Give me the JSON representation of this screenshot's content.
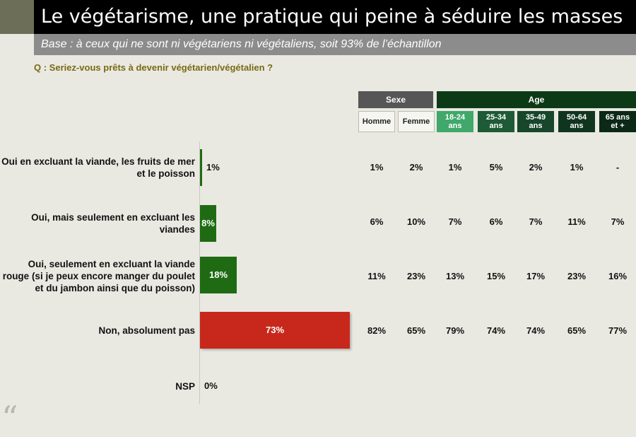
{
  "title": "Le végétarisme, une pratique qui peine à séduire les masses",
  "subtitle": "Base : à ceux qui ne sont ni végétariens ni végétaliens, soit 93% de l’échantillon",
  "question": "Q : Seriez-vous prêts à devenir végétarien/végétalien ?",
  "colors": {
    "bar_green": "#1f6b13",
    "bar_red": "#c8281c",
    "sexe_header": "#565656",
    "age_header": "#0d3a16",
    "age_18_24": "#3fa86a",
    "age_25_34": "#1e5a36",
    "age_35_49": "#17462a",
    "age_50_64": "#10351f",
    "age_65": "#0c2817"
  },
  "chart_data": {
    "type": "bar",
    "orientation": "horizontal",
    "categories": [
      "Oui en excluant la viande, les fruits de mer et le poisson",
      "Oui, mais seulement en excluant les viandes",
      "Oui, seulement en excluant la viande rouge (si je peux encore manger du poulet et du jambon ainsi que du poisson)",
      "Non, absolument pas",
      "NSP"
    ],
    "values": [
      1,
      8,
      18,
      73,
      0
    ],
    "value_labels": [
      "1%",
      "8%",
      "18%",
      "73%",
      "0%"
    ],
    "bar_colors": [
      "green",
      "green",
      "green",
      "red",
      "green"
    ],
    "xlim": [
      0,
      100
    ],
    "table": {
      "groups": [
        {
          "label": "Sexe",
          "columns": [
            "Homme",
            "Femme"
          ]
        },
        {
          "label": "Age",
          "columns": [
            "18-24 ans",
            "25-34 ans",
            "35-49 ans",
            "50-64 ans",
            "65 ans et +"
          ]
        }
      ],
      "column_labels": [
        [
          "Homme"
        ],
        [
          "Femme"
        ],
        [
          "18-24",
          "ans"
        ],
        [
          "25-34",
          "ans"
        ],
        [
          "35-49",
          "ans"
        ],
        [
          "50-64",
          "ans"
        ],
        [
          "65 ans",
          "et +"
        ]
      ],
      "rows": [
        [
          "1%",
          "2%",
          "1%",
          "5%",
          "2%",
          "1%",
          "-"
        ],
        [
          "6%",
          "10%",
          "7%",
          "6%",
          "7%",
          "11%",
          "7%"
        ],
        [
          "11%",
          "23%",
          "13%",
          "15%",
          "17%",
          "23%",
          "16%"
        ],
        [
          "82%",
          "65%",
          "79%",
          "74%",
          "74%",
          "65%",
          "77%"
        ]
      ]
    }
  }
}
